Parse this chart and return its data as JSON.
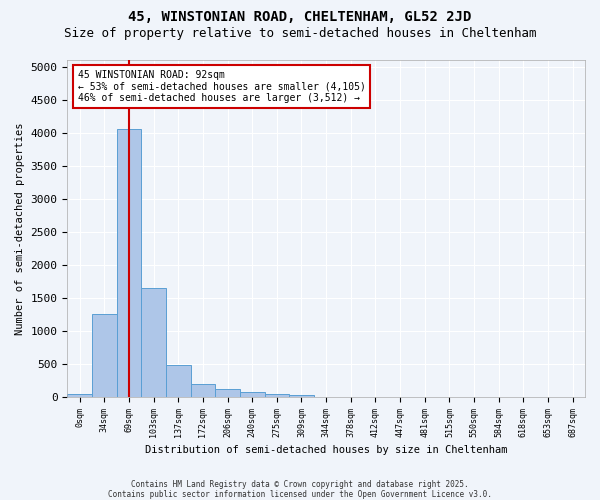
{
  "title1": "45, WINSTONIAN ROAD, CHELTENHAM, GL52 2JD",
  "title2": "Size of property relative to semi-detached houses in Cheltenham",
  "xlabel": "Distribution of semi-detached houses by size in Cheltenham",
  "ylabel": "Number of semi-detached properties",
  "bar_values": [
    50,
    1250,
    4050,
    1650,
    480,
    200,
    120,
    70,
    40,
    30,
    0,
    0,
    0,
    0,
    0,
    0,
    0,
    0,
    0,
    0
  ],
  "bin_labels": [
    "0sqm",
    "34sqm",
    "69sqm",
    "103sqm",
    "137sqm",
    "172sqm",
    "206sqm",
    "240sqm",
    "275sqm",
    "309sqm",
    "344sqm",
    "378sqm",
    "412sqm",
    "447sqm",
    "481sqm",
    "515sqm",
    "550sqm",
    "584sqm",
    "618sqm",
    "653sqm"
  ],
  "last_label": "687sqm",
  "bar_color": "#aec6e8",
  "bar_edge_color": "#5a9fd4",
  "vline_x": 2.0,
  "vline_color": "#cc0000",
  "annotation_text": "45 WINSTONIAN ROAD: 92sqm\n← 53% of semi-detached houses are smaller (4,105)\n46% of semi-detached houses are larger (3,512) →",
  "annotation_box_color": "#ffffff",
  "annotation_box_edge": "#cc0000",
  "ylim": [
    0,
    5100
  ],
  "yticks": [
    0,
    500,
    1000,
    1500,
    2000,
    2500,
    3000,
    3500,
    4000,
    4500,
    5000
  ],
  "background_color": "#f0f4fa",
  "footer_line1": "Contains HM Land Registry data © Crown copyright and database right 2025.",
  "footer_line2": "Contains public sector information licensed under the Open Government Licence v3.0.",
  "grid_color": "#ffffff",
  "title_fontsize": 10,
  "subtitle_fontsize": 9
}
